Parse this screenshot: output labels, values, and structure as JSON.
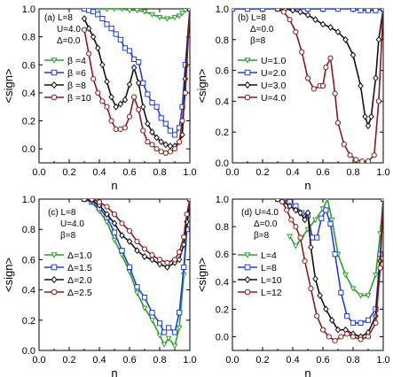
{
  "chart_data": [
    {
      "type": "line",
      "panel_label": "(a)",
      "annotations": [
        "L=8",
        "U=4.0",
        "Δ=0.0"
      ],
      "xlabel": "n",
      "ylabel": "<sign>",
      "xlim": [
        0.0,
        1.0
      ],
      "ylim": [
        -0.1,
        1.0
      ],
      "xticks": [
        "0.0",
        "0.2",
        "0.4",
        "0.6",
        "0.8",
        "1.0"
      ],
      "yticks": [
        "0.0",
        "0.2",
        "0.4",
        "0.6",
        "0.8",
        "1.0"
      ],
      "legend_position": "left-middle",
      "series": [
        {
          "name": "β =4",
          "color": "#2ca02c",
          "marker": "triangle-down",
          "x": [
            0.3,
            0.35,
            0.4,
            0.45,
            0.5,
            0.55,
            0.6,
            0.65,
            0.7,
            0.75,
            0.8,
            0.85,
            0.9,
            0.93,
            0.95,
            0.97,
            1.0
          ],
          "y": [
            1.0,
            1.0,
            1.0,
            1.0,
            1.0,
            1.0,
            0.99,
            0.99,
            0.98,
            0.96,
            0.94,
            0.93,
            0.94,
            0.95,
            0.97,
            0.99,
            1.0
          ]
        },
        {
          "name": "β =6",
          "color": "#1f3fd8",
          "marker": "square",
          "x": [
            0.3,
            0.33,
            0.36,
            0.39,
            0.42,
            0.45,
            0.48,
            0.51,
            0.54,
            0.57,
            0.6,
            0.63,
            0.66,
            0.69,
            0.72,
            0.75,
            0.78,
            0.81,
            0.84,
            0.87,
            0.9,
            0.93,
            0.95,
            0.97,
            1.0
          ],
          "y": [
            1.0,
            0.99,
            0.98,
            0.96,
            0.93,
            0.89,
            0.86,
            0.82,
            0.78,
            0.72,
            0.7,
            0.64,
            0.62,
            0.47,
            0.39,
            0.33,
            0.3,
            0.22,
            0.18,
            0.13,
            0.1,
            0.15,
            0.3,
            0.6,
            1.0
          ]
        },
        {
          "name": "β =8",
          "color": "#111111",
          "marker": "diamond",
          "x": [
            0.3,
            0.33,
            0.36,
            0.39,
            0.42,
            0.45,
            0.48,
            0.51,
            0.54,
            0.57,
            0.6,
            0.63,
            0.66,
            0.69,
            0.72,
            0.75,
            0.78,
            0.81,
            0.84,
            0.87,
            0.9,
            0.93,
            0.95,
            0.97,
            1.0
          ],
          "y": [
            0.93,
            0.86,
            0.8,
            0.72,
            0.6,
            0.48,
            0.37,
            0.3,
            0.32,
            0.35,
            0.46,
            0.58,
            0.47,
            0.3,
            0.18,
            0.12,
            0.08,
            0.05,
            0.03,
            0.02,
            0.02,
            0.05,
            0.1,
            0.5,
            1.0
          ]
        },
        {
          "name": "β =10",
          "color": "#8b1a1a",
          "marker": "circle",
          "x": [
            0.3,
            0.33,
            0.36,
            0.39,
            0.42,
            0.45,
            0.48,
            0.51,
            0.54,
            0.57,
            0.6,
            0.63,
            0.66,
            0.69,
            0.72,
            0.75,
            0.78,
            0.81,
            0.84,
            0.87,
            0.9,
            0.93,
            0.95,
            0.97,
            1.0
          ],
          "y": [
            0.85,
            0.68,
            0.5,
            0.4,
            0.34,
            0.3,
            0.2,
            0.14,
            0.14,
            0.15,
            0.23,
            0.37,
            0.28,
            0.13,
            0.05,
            0.03,
            0.0,
            -0.02,
            -0.03,
            -0.02,
            0.0,
            0.05,
            0.2,
            0.4,
            1.0
          ]
        }
      ]
    },
    {
      "type": "line",
      "panel_label": "(b)",
      "annotations": [
        "L=8",
        "Δ=0.0",
        "β=8"
      ],
      "xlabel": "n",
      "ylabel": "<sign>",
      "xlim": [
        0.0,
        1.0
      ],
      "ylim": [
        0.0,
        1.0
      ],
      "xticks": [
        "0.0",
        "0.2",
        "0.4",
        "0.6",
        "0.8",
        "1.0"
      ],
      "yticks": [
        "0.0",
        "0.2",
        "0.4",
        "0.6",
        "0.8",
        "1.0"
      ],
      "legend_position": "left-middle",
      "series": [
        {
          "name": "U=1.0",
          "color": "#2ca02c",
          "marker": "triangle-down",
          "x": [
            0.0,
            0.1,
            0.2,
            0.3,
            0.4,
            0.5,
            0.6,
            0.7,
            0.8,
            0.9,
            1.0
          ],
          "y": [
            1.0,
            1.0,
            1.0,
            1.0,
            1.0,
            1.0,
            1.0,
            1.0,
            1.0,
            1.0,
            1.0
          ]
        },
        {
          "name": "U=2.0",
          "color": "#1f3fd8",
          "marker": "square",
          "x": [
            0.0,
            0.1,
            0.2,
            0.3,
            0.4,
            0.5,
            0.6,
            0.7,
            0.8,
            0.85,
            0.9,
            0.95,
            1.0
          ],
          "y": [
            1.0,
            1.0,
            1.0,
            1.0,
            1.0,
            1.0,
            1.0,
            1.0,
            1.0,
            0.99,
            0.99,
            0.99,
            1.0
          ]
        },
        {
          "name": "U=3.0",
          "color": "#111111",
          "marker": "diamond",
          "x": [
            0.3,
            0.35,
            0.4,
            0.45,
            0.5,
            0.55,
            0.6,
            0.65,
            0.7,
            0.75,
            0.8,
            0.85,
            0.88,
            0.9,
            0.92,
            0.95,
            0.97,
            1.0
          ],
          "y": [
            1.0,
            1.0,
            0.99,
            0.98,
            0.96,
            0.93,
            0.9,
            0.88,
            0.85,
            0.8,
            0.7,
            0.5,
            0.3,
            0.24,
            0.3,
            0.55,
            0.8,
            1.0
          ]
        },
        {
          "name": "U=4.0",
          "color": "#8b1a1a",
          "marker": "circle",
          "x": [
            0.3,
            0.34,
            0.38,
            0.42,
            0.46,
            0.5,
            0.54,
            0.58,
            0.6,
            0.62,
            0.65,
            0.68,
            0.7,
            0.74,
            0.78,
            0.82,
            0.86,
            0.9,
            0.94,
            0.97,
            1.0
          ],
          "y": [
            1.0,
            0.98,
            0.93,
            0.85,
            0.72,
            0.55,
            0.48,
            0.5,
            0.5,
            0.62,
            0.68,
            0.45,
            0.26,
            0.12,
            0.05,
            0.02,
            0.01,
            0.01,
            0.05,
            0.4,
            1.0
          ]
        }
      ]
    },
    {
      "type": "line",
      "panel_label": "(c)",
      "annotations": [
        "L=8",
        "U=4.0",
        "β=8"
      ],
      "xlabel": "n",
      "ylabel": "<sign>",
      "xlim": [
        0.0,
        1.0
      ],
      "ylim": [
        0.0,
        1.0
      ],
      "xticks": [
        "0.0",
        "0.2",
        "0.4",
        "0.6",
        "0.8",
        "1.0"
      ],
      "yticks": [
        "0.0",
        "0.2",
        "0.4",
        "0.6",
        "0.8",
        "1.0"
      ],
      "legend_position": "left-middle",
      "series": [
        {
          "name": "Δ=1.0",
          "color": "#2ca02c",
          "marker": "triangle-down",
          "x": [
            0.3,
            0.35,
            0.4,
            0.45,
            0.5,
            0.55,
            0.6,
            0.65,
            0.7,
            0.75,
            0.8,
            0.83,
            0.86,
            0.9,
            0.93,
            0.96,
            0.98,
            1.0
          ],
          "y": [
            1.0,
            0.98,
            0.92,
            0.85,
            0.73,
            0.63,
            0.52,
            0.38,
            0.28,
            0.2,
            0.1,
            0.04,
            0.08,
            0.03,
            0.15,
            0.5,
            0.8,
            1.0
          ]
        },
        {
          "name": "Δ=1.5",
          "color": "#1f3fd8",
          "marker": "square",
          "x": [
            0.3,
            0.35,
            0.4,
            0.45,
            0.5,
            0.55,
            0.6,
            0.65,
            0.7,
            0.75,
            0.8,
            0.83,
            0.86,
            0.9,
            0.93,
            0.96,
            0.98,
            1.0
          ],
          "y": [
            1.0,
            0.98,
            0.94,
            0.88,
            0.78,
            0.66,
            0.55,
            0.42,
            0.35,
            0.25,
            0.18,
            0.12,
            0.15,
            0.12,
            0.25,
            0.55,
            0.8,
            1.0
          ]
        },
        {
          "name": "Δ=2.0",
          "color": "#111111",
          "marker": "diamond",
          "x": [
            0.3,
            0.35,
            0.4,
            0.45,
            0.5,
            0.55,
            0.6,
            0.65,
            0.7,
            0.75,
            0.8,
            0.85,
            0.9,
            0.93,
            0.96,
            0.98,
            1.0
          ],
          "y": [
            1.0,
            0.99,
            0.96,
            0.9,
            0.84,
            0.76,
            0.72,
            0.66,
            0.62,
            0.6,
            0.57,
            0.55,
            0.58,
            0.6,
            0.7,
            0.85,
            1.0
          ]
        },
        {
          "name": "Δ=2.5",
          "color": "#8b1a1a",
          "marker": "circle",
          "x": [
            0.3,
            0.35,
            0.4,
            0.45,
            0.5,
            0.55,
            0.6,
            0.65,
            0.7,
            0.75,
            0.8,
            0.85,
            0.9,
            0.93,
            0.96,
            0.98,
            1.0
          ],
          "y": [
            1.0,
            1.0,
            0.98,
            0.95,
            0.9,
            0.84,
            0.79,
            0.72,
            0.67,
            0.63,
            0.6,
            0.58,
            0.6,
            0.65,
            0.75,
            0.9,
            1.0
          ]
        }
      ]
    },
    {
      "type": "line",
      "panel_label": "(d)",
      "annotations": [
        "U=4.0",
        "Δ=0.0",
        "β=8"
      ],
      "xlabel": "n",
      "ylabel": "<sign>",
      "xlim": [
        0.0,
        1.0
      ],
      "ylim": [
        -0.1,
        1.0
      ],
      "xticks": [
        "0.0",
        "0.2",
        "0.4",
        "0.6",
        "0.8",
        "1.0"
      ],
      "yticks": [
        "0.0",
        "0.2",
        "0.4",
        "0.6",
        "0.8",
        "1.0"
      ],
      "legend_position": "left-middle",
      "series": [
        {
          "name": "L=4",
          "color": "#2ca02c",
          "marker": "triangle-down",
          "x": [
            0.38,
            0.42,
            0.46,
            0.5,
            0.55,
            0.6,
            0.63,
            0.66,
            0.7,
            0.75,
            0.8,
            0.85,
            0.9,
            0.95,
            0.98,
            1.0
          ],
          "y": [
            0.73,
            0.66,
            0.72,
            0.78,
            0.85,
            0.93,
            1.0,
            0.85,
            0.6,
            0.45,
            0.35,
            0.3,
            0.3,
            0.45,
            0.75,
            1.0
          ]
        },
        {
          "name": "L=8",
          "color": "#1f3fd8",
          "marker": "square",
          "x": [
            0.3,
            0.34,
            0.38,
            0.42,
            0.46,
            0.5,
            0.53,
            0.56,
            0.59,
            0.62,
            0.65,
            0.68,
            0.72,
            0.76,
            0.8,
            0.85,
            0.9,
            0.95,
            0.98,
            1.0
          ],
          "y": [
            1.0,
            1.0,
            0.98,
            0.95,
            0.9,
            0.88,
            0.72,
            0.72,
            0.86,
            0.92,
            0.82,
            0.6,
            0.32,
            0.15,
            0.1,
            0.1,
            0.12,
            0.2,
            0.6,
            1.0
          ]
        },
        {
          "name": "L=10",
          "color": "#111111",
          "marker": "diamond",
          "x": [
            0.3,
            0.34,
            0.38,
            0.42,
            0.45,
            0.48,
            0.5,
            0.52,
            0.55,
            0.58,
            0.62,
            0.66,
            0.7,
            0.75,
            0.8,
            0.85,
            0.9,
            0.95,
            0.98,
            1.0
          ],
          "y": [
            1.0,
            0.98,
            0.95,
            0.92,
            0.9,
            0.85,
            0.9,
            0.65,
            0.42,
            0.3,
            0.2,
            0.12,
            0.05,
            0.05,
            0.02,
            0.0,
            0.03,
            0.15,
            0.55,
            1.0
          ]
        },
        {
          "name": "L=12",
          "color": "#8b1a1a",
          "marker": "circle",
          "x": [
            0.3,
            0.33,
            0.36,
            0.39,
            0.42,
            0.45,
            0.48,
            0.52,
            0.56,
            0.6,
            0.64,
            0.68,
            0.72,
            0.76,
            0.8,
            0.85,
            0.9,
            0.95,
            0.98,
            1.0
          ],
          "y": [
            1.0,
            0.98,
            0.92,
            0.85,
            0.8,
            0.72,
            0.55,
            0.35,
            0.15,
            0.05,
            0.0,
            -0.03,
            0.0,
            0.02,
            0.0,
            -0.02,
            0.0,
            0.1,
            0.5,
            1.0
          ]
        }
      ]
    }
  ]
}
